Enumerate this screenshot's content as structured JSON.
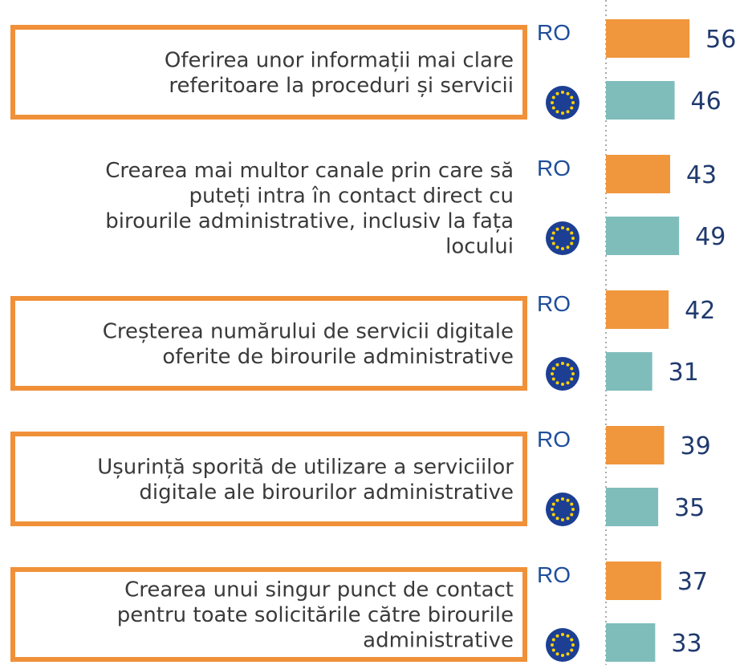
{
  "chart_data": {
    "type": "bar",
    "orientation": "horizontal",
    "categories": [
      "Oferirea unor informații mai clare\nreferitoare la proceduri și servicii",
      "Crearea mai multor canale prin care să\nputeți intra în contact direct cu\nbirourile administrative, inclusiv la fața\nlocului",
      "Creșterea numărului de servicii digitale\noferite de birourile administrative",
      "Ușurință sporită de utilizare a serviciilor\ndigitale ale birourilor administrative",
      "Crearea unui singur punct de contact\npentru toate solicitările către birourile\nadministrative"
    ],
    "highlighted": [
      true,
      false,
      true,
      true,
      true
    ],
    "highlight_color": "#f0913a",
    "series": [
      {
        "name": "RO",
        "color": "#f0963c",
        "values": [
          56,
          43,
          42,
          39,
          37
        ]
      },
      {
        "color": "#7fbdbb",
        "values": [
          46,
          49,
          31,
          35,
          33
        ]
      }
    ]
  }
}
